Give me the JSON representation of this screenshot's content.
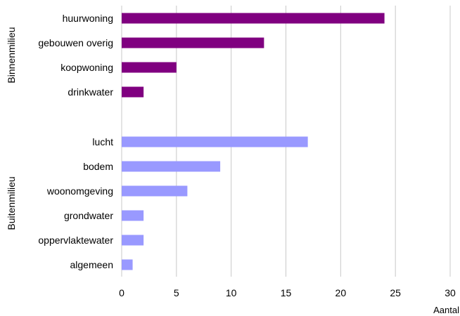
{
  "chart_data": {
    "type": "bar",
    "orientation": "horizontal",
    "xlabel": "Aantal",
    "xlim": [
      0,
      30
    ],
    "x_ticks": [
      0,
      5,
      10,
      15,
      20,
      25,
      30
    ],
    "grid": true,
    "groups": [
      {
        "name": "Binnenmilieu",
        "color": "#800080",
        "categories": [
          "huurwoning",
          "gebouwen overig",
          "koopwoning",
          "drinkwater"
        ],
        "values": [
          24,
          13,
          5,
          2
        ]
      },
      {
        "name": "Buitenmilieu",
        "color": "#9999ff",
        "categories": [
          "lucht",
          "bodem",
          "woonomgeving",
          "grondwater",
          "oppervlaktewater",
          "algemeen"
        ],
        "values": [
          17,
          9,
          6,
          2,
          2,
          1
        ]
      }
    ]
  }
}
